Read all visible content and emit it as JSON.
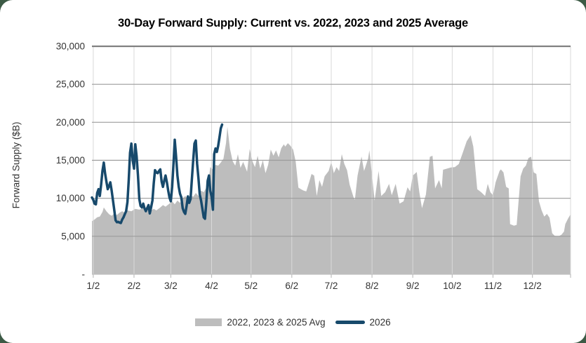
{
  "page": {
    "background_color": "#3c5a45",
    "card_color": "#ffffff"
  },
  "chart_data": {
    "type": "area",
    "title": "30-Day Forward Supply: Current vs. 2022, 2023 and 2025 Average",
    "xlabel": "",
    "ylabel": "Forward Supply ($B)",
    "ylim": [
      0,
      30000
    ],
    "y_tick_interval": 5000,
    "y_ticks": [
      {
        "v": 0,
        "label": "-"
      },
      {
        "v": 5000,
        "label": "5,000"
      },
      {
        "v": 10000,
        "label": "10,000"
      },
      {
        "v": 15000,
        "label": "15,000"
      },
      {
        "v": 20000,
        "label": "20,000"
      },
      {
        "v": 25000,
        "label": "25,000"
      },
      {
        "v": 30000,
        "label": "30,000"
      }
    ],
    "x_ticks": [
      {
        "day": 2,
        "label": "1/2"
      },
      {
        "day": 33,
        "label": "2/2"
      },
      {
        "day": 61,
        "label": "3/2"
      },
      {
        "day": 92,
        "label": "4/2"
      },
      {
        "day": 122,
        "label": "5/2"
      },
      {
        "day": 153,
        "label": "6/2"
      },
      {
        "day": 183,
        "label": "7/2"
      },
      {
        "day": 214,
        "label": "8/2"
      },
      {
        "day": 245,
        "label": "9/2"
      },
      {
        "day": 275,
        "label": "10/2"
      },
      {
        "day": 306,
        "label": "11/2"
      },
      {
        "day": 336,
        "label": "12/2"
      }
    ],
    "days_in_year": 365,
    "grid": true,
    "legend_position": "bottom",
    "colors": {
      "area": "#bdbdbd",
      "line": "#17496b",
      "grid_horizontal": "#9c9c9c",
      "grid_top_border": "#808080",
      "grid_vertical": "#d9d9d9",
      "axis": "#bfbfbf",
      "tick_label": "#333333"
    },
    "series": [
      {
        "name": "2022, 2023 & 2025 Avg",
        "type": "area",
        "color": "#bdbdbd",
        "points": [
          [
            1,
            7000
          ],
          [
            3,
            7200
          ],
          [
            5,
            7500
          ],
          [
            7,
            7600
          ],
          [
            9,
            8200
          ],
          [
            10,
            8800
          ],
          [
            12,
            8300
          ],
          [
            14,
            7900
          ],
          [
            16,
            7700
          ],
          [
            18,
            8000
          ],
          [
            20,
            7800
          ],
          [
            22,
            8100
          ],
          [
            24,
            8300
          ],
          [
            26,
            8100
          ],
          [
            28,
            8400
          ],
          [
            31,
            8300
          ],
          [
            34,
            8600
          ],
          [
            37,
            8500
          ],
          [
            40,
            8700
          ],
          [
            43,
            8600
          ],
          [
            45,
            8300
          ],
          [
            48,
            8600
          ],
          [
            50,
            8400
          ],
          [
            53,
            8800
          ],
          [
            55,
            9100
          ],
          [
            57,
            8900
          ],
          [
            60,
            9300
          ],
          [
            62,
            9600
          ],
          [
            64,
            9200
          ],
          [
            66,
            9700
          ],
          [
            68,
            9400
          ],
          [
            70,
            10000
          ],
          [
            72,
            10300
          ],
          [
            74,
            10000
          ],
          [
            76,
            10400
          ],
          [
            78,
            10200
          ],
          [
            80,
            10700
          ],
          [
            82,
            10300
          ],
          [
            84,
            11000
          ],
          [
            86,
            10800
          ],
          [
            88,
            11400
          ],
          [
            90,
            12800
          ],
          [
            91,
            14100
          ],
          [
            93,
            13800
          ],
          [
            95,
            14400
          ],
          [
            97,
            14300
          ],
          [
            99,
            14700
          ],
          [
            101,
            15200
          ],
          [
            103,
            17300
          ],
          [
            104,
            19400
          ],
          [
            106,
            16500
          ],
          [
            108,
            14900
          ],
          [
            110,
            14300
          ],
          [
            112,
            15800
          ],
          [
            114,
            14000
          ],
          [
            116,
            14800
          ],
          [
            119,
            13500
          ],
          [
            121,
            16500
          ],
          [
            123,
            14900
          ],
          [
            125,
            14100
          ],
          [
            127,
            15600
          ],
          [
            129,
            13900
          ],
          [
            131,
            15000
          ],
          [
            133,
            13300
          ],
          [
            135,
            14400
          ],
          [
            137,
            16400
          ],
          [
            139,
            15600
          ],
          [
            141,
            16300
          ],
          [
            143,
            15400
          ],
          [
            145,
            16600
          ],
          [
            147,
            17100
          ],
          [
            148,
            16800
          ],
          [
            150,
            17250
          ],
          [
            152,
            16900
          ],
          [
            154,
            16400
          ],
          [
            156,
            14800
          ],
          [
            158,
            11400
          ],
          [
            160,
            11200
          ],
          [
            162,
            11000
          ],
          [
            164,
            10900
          ],
          [
            166,
            12000
          ],
          [
            168,
            13200
          ],
          [
            170,
            13000
          ],
          [
            172,
            10300
          ],
          [
            174,
            12400
          ],
          [
            176,
            11500
          ],
          [
            178,
            12900
          ],
          [
            181,
            13600
          ],
          [
            183,
            14800
          ],
          [
            185,
            13300
          ],
          [
            187,
            14100
          ],
          [
            189,
            13600
          ],
          [
            191,
            15800
          ],
          [
            193,
            14500
          ],
          [
            195,
            13700
          ],
          [
            197,
            11800
          ],
          [
            200,
            10100
          ],
          [
            201,
            9800
          ],
          [
            203,
            13000
          ],
          [
            206,
            15500
          ],
          [
            208,
            13600
          ],
          [
            211,
            15200
          ],
          [
            212,
            16300
          ],
          [
            214,
            13000
          ],
          [
            216,
            9700
          ],
          [
            219,
            13600
          ],
          [
            221,
            10300
          ],
          [
            224,
            10800
          ],
          [
            227,
            11900
          ],
          [
            229,
            10400
          ],
          [
            232,
            11900
          ],
          [
            235,
            9300
          ],
          [
            238,
            9600
          ],
          [
            241,
            11450
          ],
          [
            243,
            10900
          ],
          [
            245,
            13000
          ],
          [
            248,
            13450
          ],
          [
            250,
            10800
          ],
          [
            252,
            8700
          ],
          [
            255,
            10500
          ],
          [
            258,
            15450
          ],
          [
            260,
            15600
          ],
          [
            262,
            11300
          ],
          [
            265,
            12400
          ],
          [
            267,
            11300
          ],
          [
            268,
            13750
          ],
          [
            271,
            13900
          ],
          [
            274,
            14050
          ],
          [
            277,
            14100
          ],
          [
            280,
            14500
          ],
          [
            283,
            16000
          ],
          [
            286,
            17500
          ],
          [
            289,
            18300
          ],
          [
            291,
            16800
          ],
          [
            292,
            15100
          ],
          [
            294,
            11200
          ],
          [
            297,
            10800
          ],
          [
            300,
            10300
          ],
          [
            302,
            11900
          ],
          [
            304,
            10800
          ],
          [
            306,
            10400
          ],
          [
            308,
            12100
          ],
          [
            311,
            13600
          ],
          [
            312,
            13800
          ],
          [
            314,
            13400
          ],
          [
            316,
            11500
          ],
          [
            318,
            11300
          ],
          [
            319,
            6600
          ],
          [
            322,
            6400
          ],
          [
            324,
            6500
          ],
          [
            327,
            12900
          ],
          [
            329,
            13900
          ],
          [
            331,
            14300
          ],
          [
            333,
            15300
          ],
          [
            335,
            15470
          ],
          [
            337,
            13400
          ],
          [
            339,
            13200
          ],
          [
            341,
            9600
          ],
          [
            343,
            8400
          ],
          [
            345,
            7600
          ],
          [
            347,
            7950
          ],
          [
            349,
            7450
          ],
          [
            351,
            5400
          ],
          [
            353,
            5050
          ],
          [
            356,
            5000
          ],
          [
            358,
            5200
          ],
          [
            360,
            5600
          ],
          [
            361,
            6600
          ],
          [
            363,
            7300
          ],
          [
            365,
            7900
          ]
        ]
      },
      {
        "name": "2026",
        "type": "line",
        "color": "#17496b",
        "stroke_width": 3.5,
        "start_day": 1,
        "values": [
          10100,
          9800,
          9300,
          9200,
          10700,
          11200,
          10300,
          11800,
          13600,
          14700,
          13300,
          12200,
          11200,
          11600,
          12100,
          11000,
          9700,
          8400,
          7100,
          6850,
          6900,
          6800,
          6750,
          7200,
          7500,
          7900,
          8300,
          9500,
          12500,
          16000,
          17200,
          15000,
          13900,
          17100,
          15500,
          13000,
          9900,
          9000,
          8800,
          9300,
          8700,
          8300,
          8700,
          9100,
          8000,
          8800,
          9700,
          12000,
          13700,
          13400,
          13300,
          13600,
          13800,
          12200,
          11500,
          12300,
          13000,
          12100,
          11000,
          10100,
          9600,
          11500,
          14500,
          17700,
          15500,
          13000,
          11500,
          10600,
          10100,
          8700,
          8200,
          7950,
          9000,
          10250,
          9400,
          9900,
          12500,
          15000,
          17200,
          17600,
          14500,
          12600,
          10500,
          9700,
          8600,
          7500,
          7300,
          9500,
          12300,
          13000,
          11000,
          10200,
          8500,
          15800,
          16550,
          16100,
          16900,
          18000,
          19200,
          19700
        ]
      }
    ]
  }
}
